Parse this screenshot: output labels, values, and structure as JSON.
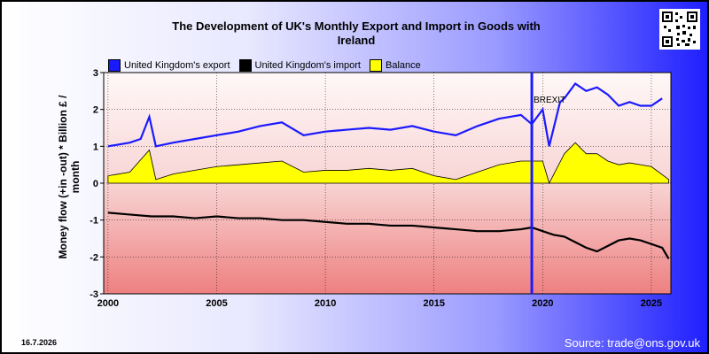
{
  "header": {
    "title_line1": "The Development of UK's Monthly Export and Import in Goods with",
    "title_line2": "Ireland"
  },
  "footer": {
    "date": "16.7.2026",
    "source": "Source: trade@ons.gov.uk"
  },
  "colors": {
    "export": "#1a1aff",
    "import": "#000000",
    "balance": "#ffff00",
    "brexit_line": "#1a1aff"
  },
  "chart_data": {
    "type": "line",
    "ylabel": "Money flow (+in -out) * Billion £ / month",
    "xlim": [
      1999.8,
      2025.9
    ],
    "ylim": [
      -3,
      3
    ],
    "x_ticks": [
      "2000",
      "2005",
      "2010",
      "2015",
      "2020",
      "2025"
    ],
    "y_ticks": [
      "3",
      "2",
      "1",
      "0",
      "-1",
      "-2",
      "-3"
    ],
    "legend_position": "top-left",
    "annotations": [
      {
        "text": "BREXIT",
        "x": 2019.5
      }
    ],
    "series": [
      {
        "name": "United Kingdom's export",
        "x": [
          2000,
          2001,
          2001.5,
          2001.9,
          2002.2,
          2003,
          2004,
          2005,
          2006,
          2007,
          2008,
          2009,
          2010,
          2011,
          2012,
          2013,
          2014,
          2015,
          2016,
          2017,
          2018,
          2019,
          2019.5,
          2020,
          2020.3,
          2020.8,
          2021,
          2021.5,
          2022,
          2022.5,
          2023,
          2023.5,
          2024,
          2024.5,
          2025,
          2025.5
        ],
        "values": [
          1.0,
          1.1,
          1.2,
          1.8,
          1.0,
          1.1,
          1.2,
          1.3,
          1.4,
          1.55,
          1.65,
          1.3,
          1.4,
          1.45,
          1.5,
          1.45,
          1.55,
          1.4,
          1.3,
          1.55,
          1.75,
          1.85,
          1.6,
          2.0,
          1.0,
          2.2,
          2.3,
          2.7,
          2.5,
          2.6,
          2.4,
          2.1,
          2.2,
          2.1,
          2.1,
          2.3
        ]
      },
      {
        "name": "United Kingdom's import",
        "x": [
          2000,
          2001,
          2002,
          2003,
          2004,
          2005,
          2006,
          2007,
          2008,
          2009,
          2010,
          2011,
          2012,
          2013,
          2014,
          2015,
          2016,
          2017,
          2018,
          2019,
          2019.5,
          2020,
          2020.5,
          2021,
          2021.5,
          2022,
          2022.5,
          2023,
          2023.5,
          2024,
          2024.5,
          2025,
          2025.5,
          2025.8
        ],
        "values": [
          -0.8,
          -0.85,
          -0.9,
          -0.9,
          -0.95,
          -0.9,
          -0.95,
          -0.95,
          -1.0,
          -1.0,
          -1.05,
          -1.1,
          -1.1,
          -1.15,
          -1.15,
          -1.2,
          -1.25,
          -1.3,
          -1.3,
          -1.25,
          -1.2,
          -1.3,
          -1.4,
          -1.45,
          -1.6,
          -1.75,
          -1.85,
          -1.7,
          -1.55,
          -1.5,
          -1.55,
          -1.65,
          -1.75,
          -2.05
        ]
      },
      {
        "name": "Balance",
        "x": [
          2000,
          2001,
          2001.9,
          2002.2,
          2003,
          2004,
          2005,
          2006,
          2007,
          2008,
          2009,
          2010,
          2011,
          2012,
          2013,
          2014,
          2015,
          2016,
          2017,
          2018,
          2019,
          2020,
          2020.3,
          2021,
          2021.5,
          2022,
          2022.5,
          2023,
          2023.5,
          2024,
          2024.5,
          2025,
          2025.8
        ],
        "values": [
          0.2,
          0.3,
          0.9,
          0.1,
          0.25,
          0.35,
          0.45,
          0.5,
          0.55,
          0.6,
          0.3,
          0.35,
          0.35,
          0.4,
          0.35,
          0.4,
          0.2,
          0.1,
          0.3,
          0.5,
          0.6,
          0.6,
          0.0,
          0.8,
          1.1,
          0.8,
          0.8,
          0.6,
          0.5,
          0.55,
          0.5,
          0.45,
          0.1
        ]
      }
    ]
  }
}
